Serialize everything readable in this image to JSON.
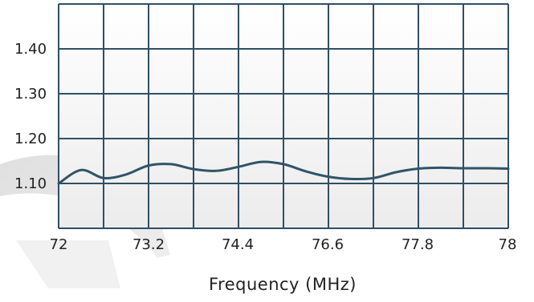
{
  "chart_data": {
    "type": "line",
    "xlabel": "Frequency (MHz)",
    "ylabel": "",
    "xlim": [
      72,
      78
    ],
    "ylim": [
      1.0,
      1.5
    ],
    "grid": true,
    "x_ticks": [
      "72",
      "73.2",
      "74.4",
      "76.6",
      "77.8",
      "78"
    ],
    "y_ticks": [
      "1.40",
      "1.30",
      "1.20",
      "1.10"
    ],
    "y_tick_values": [
      1.4,
      1.3,
      1.2,
      1.1
    ],
    "series": [
      {
        "x": [
          72.0,
          72.3,
          72.6,
          72.9,
          73.2,
          73.5,
          73.8,
          74.1,
          74.4,
          74.7,
          75.0,
          75.3,
          75.6,
          75.9,
          76.2,
          76.5,
          76.8,
          77.1,
          77.4,
          77.7,
          78.0
        ],
        "values": [
          1.1,
          1.13,
          1.112,
          1.12,
          1.14,
          1.143,
          1.132,
          1.128,
          1.137,
          1.148,
          1.143,
          1.127,
          1.115,
          1.11,
          1.112,
          1.125,
          1.133,
          1.135,
          1.134,
          1.134,
          1.133
        ]
      }
    ],
    "colors": {
      "line": "#2f5468",
      "grid": "#2f4f64",
      "frame": "#2f4f64"
    }
  }
}
